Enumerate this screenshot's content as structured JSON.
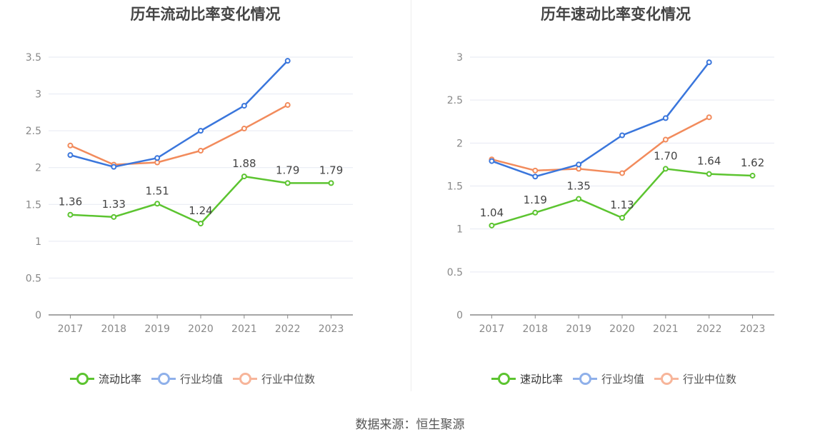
{
  "source": "数据来源：恒生聚源",
  "chart_data": [
    {
      "type": "line",
      "title": "历年流动比率变化情况",
      "categories": [
        "2017",
        "2018",
        "2019",
        "2020",
        "2021",
        "2022",
        "2023"
      ],
      "ylim": [
        0,
        3.5
      ],
      "yticks": [
        "0",
        "0.5",
        "1",
        "1.5",
        "2",
        "2.5",
        "3",
        "3.5"
      ],
      "grid": true,
      "legend_position": "bottom",
      "series": [
        {
          "name": "流动比率",
          "color": "#5cc430",
          "values": [
            1.36,
            1.33,
            1.51,
            1.24,
            1.88,
            1.79,
            1.79
          ],
          "labels": [
            "1.36",
            "1.33",
            "1.51",
            "1.24",
            "1.88",
            "1.79",
            "1.79"
          ]
        },
        {
          "name": "行业均值",
          "color": "#3a76dc",
          "values": [
            2.17,
            2.01,
            2.13,
            2.5,
            2.84,
            3.45,
            null
          ]
        },
        {
          "name": "行业中位数",
          "color": "#f28b5c",
          "values": [
            2.3,
            2.04,
            2.07,
            2.23,
            2.53,
            2.85,
            null
          ]
        }
      ]
    },
    {
      "type": "line",
      "title": "历年速动比率变化情况",
      "categories": [
        "2017",
        "2018",
        "2019",
        "2020",
        "2021",
        "2022",
        "2023"
      ],
      "ylim": [
        0,
        3
      ],
      "yticks": [
        "0",
        "0.5",
        "1",
        "1.5",
        "2",
        "2.5",
        "3"
      ],
      "grid": true,
      "legend_position": "bottom",
      "series": [
        {
          "name": "速动比率",
          "color": "#5cc430",
          "values": [
            1.04,
            1.19,
            1.35,
            1.13,
            1.7,
            1.64,
            1.62
          ],
          "labels": [
            "1.04",
            "1.19",
            "1.35",
            "1.13",
            "1.70",
            "1.64",
            "1.62"
          ]
        },
        {
          "name": "行业均值",
          "color": "#3a76dc",
          "values": [
            1.79,
            1.61,
            1.75,
            2.09,
            2.29,
            2.94,
            null
          ]
        },
        {
          "name": "行业中位数",
          "color": "#f28b5c",
          "values": [
            1.81,
            1.68,
            1.7,
            1.65,
            2.04,
            2.3,
            null
          ]
        }
      ]
    }
  ]
}
